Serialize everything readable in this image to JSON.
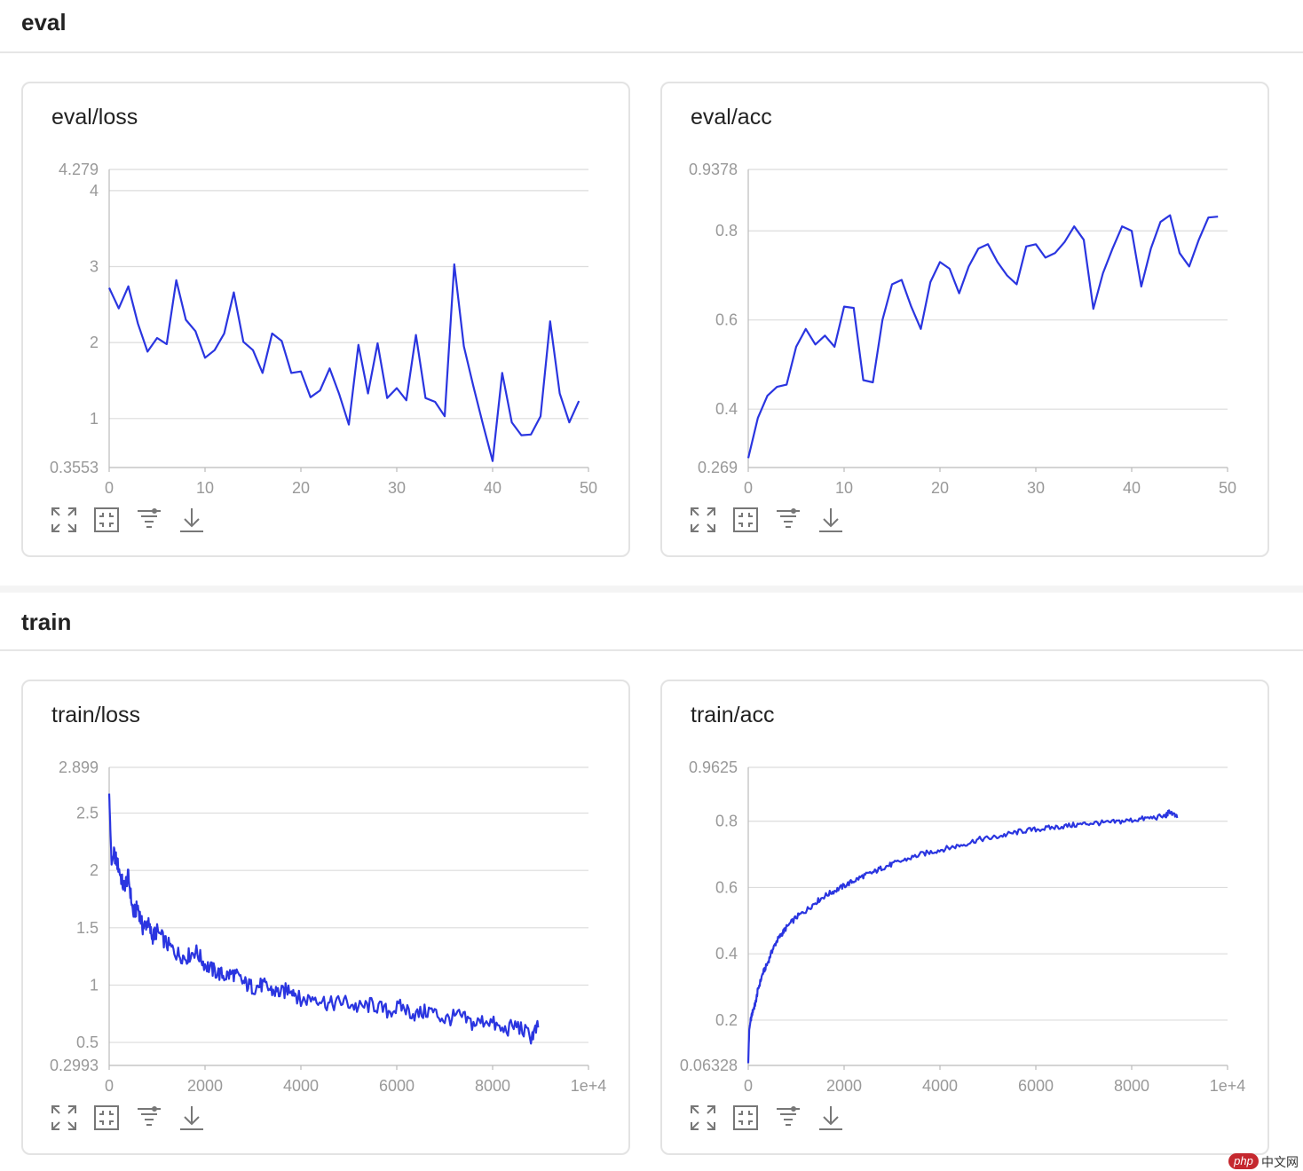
{
  "sections": [
    {
      "title": "eval"
    },
    {
      "title": "train"
    }
  ],
  "colors": {
    "line": "#2a35e0",
    "grid": "#dcdcdc",
    "tick_text": "#999999"
  },
  "tool_icons": [
    "fullscreen-icon",
    "fit-screen-icon",
    "filter-icon",
    "download-icon"
  ],
  "watermark": {
    "badge": "php",
    "text": "中文网"
  },
  "chart_data": [
    {
      "type": "line",
      "title": "eval/loss",
      "xlim": [
        0,
        50
      ],
      "ylim": [
        0.3553,
        4.279
      ],
      "xticks": [
        "0",
        "10",
        "20",
        "30",
        "40",
        "50"
      ],
      "yticks": [
        {
          "value": 4.279,
          "label": "4.279"
        },
        {
          "value": 4,
          "label": "4"
        },
        {
          "value": 3,
          "label": "3"
        },
        {
          "value": 2,
          "label": "2"
        },
        {
          "value": 1,
          "label": "1"
        },
        {
          "value": 0.3553,
          "label": "0.3553"
        }
      ],
      "grid": true,
      "series": [
        {
          "x": [
            0,
            1,
            2,
            3,
            4,
            5,
            6,
            7,
            8,
            9,
            10,
            11,
            12,
            13,
            14,
            15,
            16,
            17,
            18,
            19,
            20,
            21,
            22,
            23,
            24,
            25,
            26,
            27,
            28,
            29,
            30,
            31,
            32,
            33,
            34,
            35,
            36,
            37,
            38,
            39,
            40,
            41,
            42,
            43,
            44,
            45,
            46,
            47,
            48,
            49
          ],
          "y": [
            2.72,
            2.45,
            2.74,
            2.25,
            1.88,
            2.06,
            1.98,
            2.82,
            2.3,
            2.15,
            1.8,
            1.9,
            2.12,
            2.66,
            2.01,
            1.9,
            1.6,
            2.12,
            2.02,
            1.6,
            1.62,
            1.28,
            1.37,
            1.66,
            1.32,
            0.92,
            1.97,
            1.33,
            1.99,
            1.27,
            1.4,
            1.24,
            2.1,
            1.27,
            1.22,
            1.03,
            3.03,
            1.95,
            1.42,
            0.92,
            0.44,
            1.6,
            0.95,
            0.78,
            0.79,
            1.03,
            2.28,
            1.33,
            0.95,
            1.23
          ]
        }
      ]
    },
    {
      "type": "line",
      "title": "eval/acc",
      "xlim": [
        0,
        50
      ],
      "ylim": [
        0.269,
        0.9378
      ],
      "xticks": [
        "0",
        "10",
        "20",
        "30",
        "40",
        "50"
      ],
      "yticks": [
        {
          "value": 0.9378,
          "label": "0.9378"
        },
        {
          "value": 0.8,
          "label": "0.8"
        },
        {
          "value": 0.6,
          "label": "0.6"
        },
        {
          "value": 0.4,
          "label": "0.4"
        },
        {
          "value": 0.269,
          "label": "0.269"
        }
      ],
      "grid": true,
      "series": [
        {
          "x": [
            0,
            1,
            2,
            3,
            4,
            5,
            6,
            7,
            8,
            9,
            10,
            11,
            12,
            13,
            14,
            15,
            16,
            17,
            18,
            19,
            20,
            21,
            22,
            23,
            24,
            25,
            26,
            27,
            28,
            29,
            30,
            31,
            32,
            33,
            34,
            35,
            36,
            37,
            38,
            39,
            40,
            41,
            42,
            43,
            44,
            45,
            46,
            47,
            48,
            49
          ],
          "y": [
            0.29,
            0.38,
            0.43,
            0.45,
            0.455,
            0.54,
            0.58,
            0.545,
            0.565,
            0.54,
            0.63,
            0.627,
            0.465,
            0.46,
            0.6,
            0.68,
            0.69,
            0.63,
            0.58,
            0.685,
            0.73,
            0.715,
            0.66,
            0.72,
            0.76,
            0.77,
            0.73,
            0.7,
            0.68,
            0.765,
            0.77,
            0.74,
            0.75,
            0.775,
            0.81,
            0.78,
            0.625,
            0.705,
            0.76,
            0.81,
            0.8,
            0.675,
            0.76,
            0.82,
            0.835,
            0.75,
            0.72,
            0.78,
            0.83,
            0.832
          ]
        }
      ]
    },
    {
      "type": "line",
      "title": "train/loss",
      "xlim": [
        0,
        10000
      ],
      "ylim": [
        0.2993,
        2.899
      ],
      "xticks": [
        "0",
        "2000",
        "4000",
        "6000",
        "8000",
        "1e+4"
      ],
      "yticks": [
        {
          "value": 2.899,
          "label": "2.899"
        },
        {
          "value": 2.5,
          "label": "2.5"
        },
        {
          "value": 2,
          "label": "2"
        },
        {
          "value": 1.5,
          "label": "1.5"
        },
        {
          "value": 1,
          "label": "1"
        },
        {
          "value": 0.5,
          "label": "0.5"
        },
        {
          "value": 0.2993,
          "label": "0.2993"
        }
      ],
      "grid": true,
      "series": [
        {
          "x": [
            0,
            50,
            100,
            200,
            300,
            400,
            500,
            600,
            700,
            800,
            900,
            1000,
            1200,
            1400,
            1600,
            1800,
            2000,
            2200,
            2400,
            2600,
            2800,
            3000,
            3200,
            3400,
            3600,
            3800,
            4000,
            4300,
            4600,
            4900,
            5200,
            5500,
            5800,
            6100,
            6400,
            6700,
            7000,
            7300,
            7600,
            7900,
            8200,
            8500,
            8800,
            8950
          ],
          "y": [
            2.67,
            2.05,
            2.15,
            2.02,
            1.85,
            1.95,
            1.62,
            1.68,
            1.5,
            1.55,
            1.42,
            1.47,
            1.36,
            1.28,
            1.24,
            1.3,
            1.18,
            1.12,
            1.08,
            1.1,
            1.02,
            0.98,
            1.0,
            0.95,
            0.93,
            0.98,
            0.86,
            0.9,
            0.83,
            0.86,
            0.8,
            0.83,
            0.77,
            0.81,
            0.74,
            0.78,
            0.7,
            0.73,
            0.66,
            0.7,
            0.6,
            0.65,
            0.55,
            0.63
          ]
        }
      ]
    },
    {
      "type": "line",
      "title": "train/acc",
      "xlim": [
        0,
        10000
      ],
      "ylim": [
        0.06328,
        0.9625
      ],
      "xticks": [
        "0",
        "2000",
        "4000",
        "6000",
        "8000",
        "1e+4"
      ],
      "yticks": [
        {
          "value": 0.9625,
          "label": "0.9625"
        },
        {
          "value": 0.8,
          "label": "0.8"
        },
        {
          "value": 0.6,
          "label": "0.6"
        },
        {
          "value": 0.4,
          "label": "0.4"
        },
        {
          "value": 0.2,
          "label": "0.2"
        },
        {
          "value": 0.06328,
          "label": "0.06328"
        }
      ],
      "grid": true,
      "series": [
        {
          "x": [
            0,
            20,
            50,
            100,
            150,
            200,
            300,
            400,
            500,
            600,
            700,
            800,
            1000,
            1200,
            1400,
            1600,
            1800,
            2000,
            2200,
            2400,
            2600,
            2800,
            3000,
            3300,
            3600,
            3900,
            4200,
            4500,
            4800,
            5100,
            5400,
            5700,
            6000,
            6300,
            6600,
            6900,
            7200,
            7500,
            7800,
            8100,
            8400,
            8700,
            8800,
            8950
          ],
          "y": [
            0.07,
            0.17,
            0.2,
            0.23,
            0.25,
            0.29,
            0.34,
            0.37,
            0.41,
            0.44,
            0.46,
            0.48,
            0.51,
            0.53,
            0.555,
            0.575,
            0.59,
            0.605,
            0.62,
            0.635,
            0.645,
            0.66,
            0.67,
            0.685,
            0.7,
            0.71,
            0.72,
            0.73,
            0.745,
            0.75,
            0.76,
            0.77,
            0.775,
            0.78,
            0.785,
            0.79,
            0.795,
            0.795,
            0.8,
            0.805,
            0.81,
            0.815,
            0.83,
            0.81
          ]
        }
      ]
    }
  ]
}
